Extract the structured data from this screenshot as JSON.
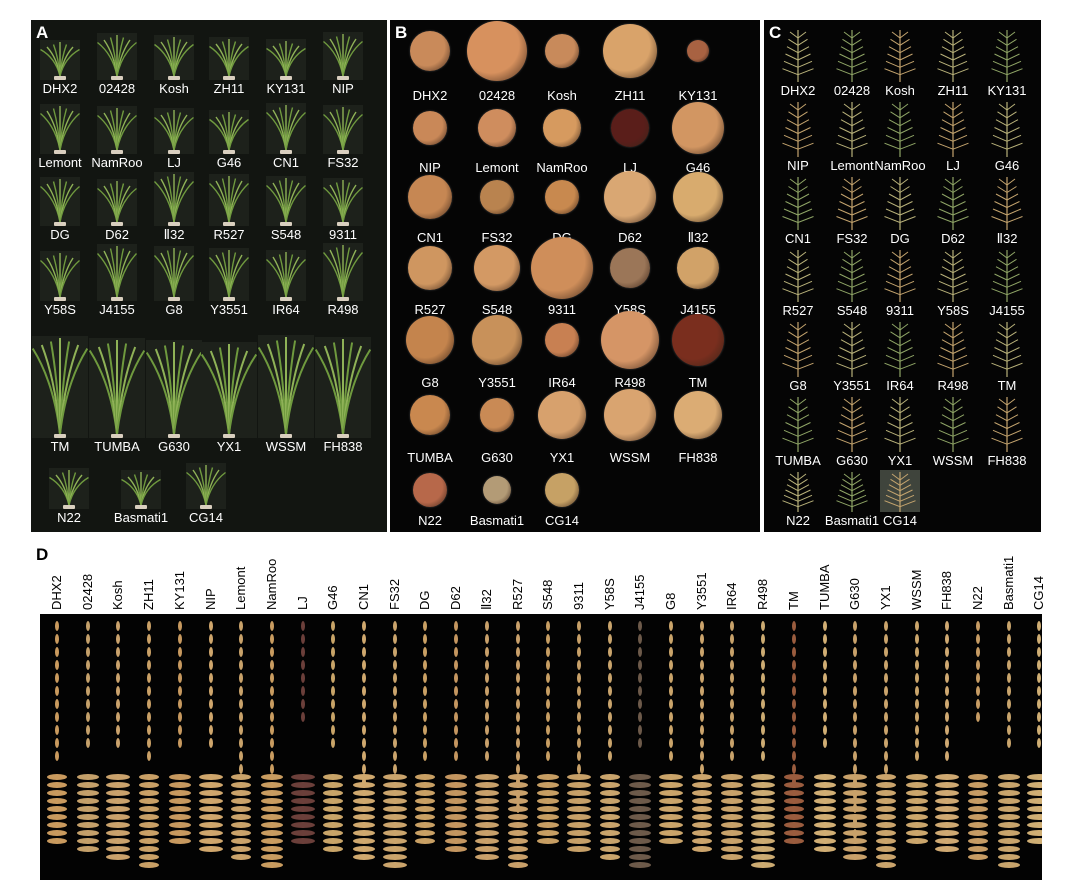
{
  "panel_labels": {
    "a": "A",
    "b": "B",
    "c": "C",
    "d": "D"
  },
  "panel_a": {
    "genotypes": [
      "DHX2",
      "02428",
      "Kosh",
      "ZH11",
      "KY131",
      "NIP",
      "Lemont",
      "NamRoo",
      "LJ",
      "G46",
      "CN1",
      "FS32",
      "DG",
      "D62",
      "Ⅱ32",
      "R527",
      "S548",
      "9311",
      "Y58S",
      "J4155",
      "G8",
      "Y3551",
      "IR64",
      "R498",
      "TM",
      "TUMBA",
      "G630",
      "YX1",
      "WSSM",
      "FH838",
      "N22",
      "Basmati1",
      "CG14"
    ]
  },
  "panel_b": {
    "genotypes": [
      "DHX2",
      "02428",
      "Kosh",
      "ZH11",
      "KY131",
      "NIP",
      "Lemont",
      "NamRoo",
      "LJ",
      "G46",
      "CN1",
      "FS32",
      "DG",
      "D62",
      "Ⅱ32",
      "R527",
      "S548",
      "9311",
      "Y58S",
      "J4155",
      "G8",
      "Y3551",
      "IR64",
      "R498",
      "TM",
      "TUMBA",
      "G630",
      "YX1",
      "WSSM",
      "FH838",
      "N22",
      "Basmati1",
      "CG14"
    ],
    "pile_colors": [
      "#c98a5a",
      "#d7915e",
      "#c88a5b",
      "#d9a36a",
      "#a86242",
      "#c98858",
      "#cf8d5e",
      "#d69a5f",
      "#5a1e1a",
      "#d29662",
      "#c68753",
      "#b9834f",
      "#c8894f",
      "#d9a773",
      "#d8ab6e",
      "#cf9660",
      "#d39964",
      "#cf8e5a",
      "#9b7658",
      "#d1a268",
      "#c4844d",
      "#c8915a",
      "#c88052",
      "#d59566",
      "#7a2e1e",
      "#c9884f",
      "#c98a55",
      "#d7a16d",
      "#d9a470",
      "#dbac74",
      "#b7684a",
      "#b39b76",
      "#c6a165"
    ]
  },
  "panel_c": {
    "genotypes": [
      "DHX2",
      "02428",
      "Kosh",
      "ZH11",
      "KY131",
      "NIP",
      "Lemont",
      "NamRoo",
      "LJ",
      "G46",
      "CN1",
      "FS32",
      "DG",
      "D62",
      "Ⅱ32",
      "R527",
      "S548",
      "9311",
      "Y58S",
      "J4155",
      "G8",
      "Y3551",
      "IR64",
      "R498",
      "TM",
      "TUMBA",
      "G630",
      "YX1",
      "WSSM",
      "FH838",
      "N22",
      "Basmati1",
      "CG14"
    ]
  },
  "panel_d": {
    "genotypes": [
      "DHX2",
      "02428",
      "Kosh",
      "ZH11",
      "KY131",
      "NIP",
      "Lemont",
      "NamRoo",
      "LJ",
      "G46",
      "CN1",
      "FS32",
      "DG",
      "D62",
      "Ⅱ32",
      "R527",
      "S548",
      "9311",
      "Y58S",
      "J4155",
      "G8",
      "Y3551",
      "IR64",
      "R498",
      "TM",
      "TUMBA",
      "G630",
      "YX1",
      "WSSM",
      "FH838",
      "N22",
      "Basmati1",
      "CG14"
    ],
    "grain_colors": [
      "#c99a5e",
      "#c4a06a",
      "#caa26c",
      "#c9a066",
      "#c7995f",
      "#cfa66c",
      "#c9a26a",
      "#c99c60",
      "#6b3f3a",
      "#c8a468",
      "#cfa86e",
      "#caa46c",
      "#c9a064",
      "#c49660",
      "#c8a06a",
      "#c9a06a",
      "#c79e63",
      "#c7a068",
      "#c9a46c",
      "#6d5a4a",
      "#caa46a",
      "#cba46c",
      "#c8a26a",
      "#ccab72",
      "#9a5c3e",
      "#d1ae74",
      "#c8a16a",
      "#caa46c",
      "#cba66c",
      "#cfa972",
      "#c79c64",
      "#c8a46c",
      "#cfae74"
    ]
  }
}
